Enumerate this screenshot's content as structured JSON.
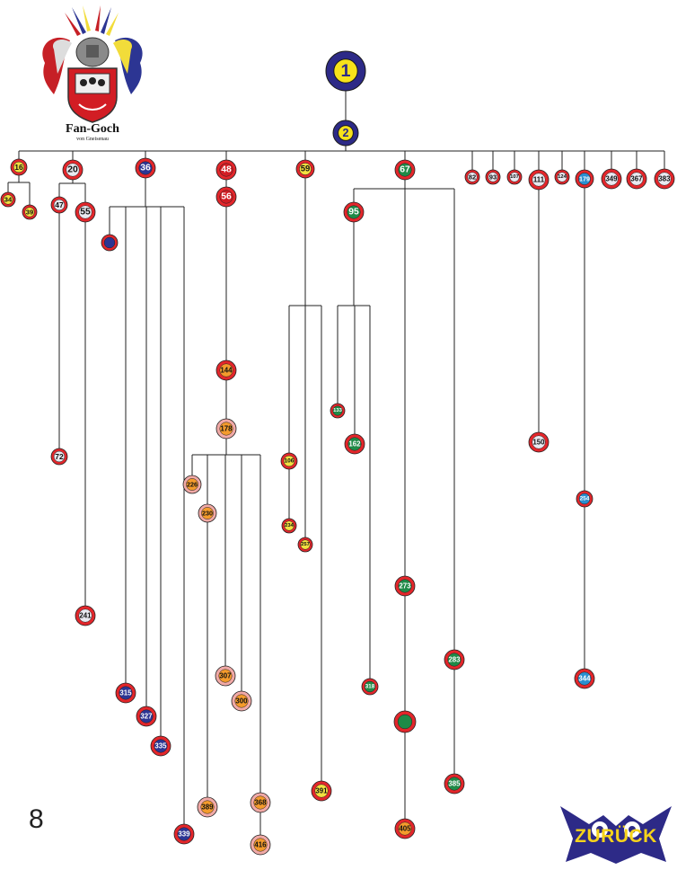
{
  "crest": {
    "name": "Fan-Goch",
    "subtitle": "von Gneisenau"
  },
  "page_number": "8",
  "back_button": {
    "label": "ZURÜCK",
    "icon": "owl-icon"
  },
  "colors": {
    "line": "#222222",
    "root_fill": "#2d2a87",
    "root_inner": "#f7e21a",
    "red_ring": "#e3262b",
    "pink_ring": "#f1a9a6"
  },
  "nodes": [
    {
      "id": "n1",
      "label": "1",
      "type": "root"
    },
    {
      "id": "n2",
      "label": "2",
      "type": "root"
    },
    {
      "id": "n16",
      "label": "16",
      "type": "red",
      "fill": "#f3e040"
    },
    {
      "id": "n20",
      "label": "20",
      "type": "red",
      "fill": "#e9e9f0"
    },
    {
      "id": "n36",
      "label": "36",
      "type": "red",
      "fill": "#2c3593"
    },
    {
      "id": "n48",
      "label": "48",
      "type": "red",
      "fill": "#d21d24"
    },
    {
      "id": "n56",
      "label": "56",
      "type": "red",
      "fill": "#d21d24"
    },
    {
      "id": "n59",
      "label": "59",
      "type": "red",
      "fill": "#f3e040"
    },
    {
      "id": "n67",
      "label": "67",
      "type": "red",
      "fill": "#1f8a47"
    },
    {
      "id": "n82",
      "label": "82",
      "type": "red",
      "fill": "#e9e9f0"
    },
    {
      "id": "n93",
      "label": "93",
      "type": "red",
      "fill": "#e9e9f0"
    },
    {
      "id": "n107",
      "label": "107",
      "type": "red",
      "fill": "#e9e9f0"
    },
    {
      "id": "n111",
      "label": "111",
      "type": "red",
      "fill": "#e9e9f0"
    },
    {
      "id": "n124",
      "label": "124",
      "type": "red",
      "fill": "#e9e9f0"
    },
    {
      "id": "n179",
      "label": "179",
      "type": "red",
      "fill": "#2a8fd0"
    },
    {
      "id": "n349",
      "label": "349",
      "type": "red",
      "fill": "#e9e9f0"
    },
    {
      "id": "n367",
      "label": "367",
      "type": "red",
      "fill": "#e9e9f0"
    },
    {
      "id": "n383",
      "label": "383",
      "type": "red",
      "fill": "#e9e9f0"
    },
    {
      "id": "n34",
      "label": "34",
      "type": "red",
      "fill": "#f3e040"
    },
    {
      "id": "n39",
      "label": "39",
      "type": "red",
      "fill": "#f3e040"
    },
    {
      "id": "n47",
      "label": "47",
      "type": "red",
      "fill": "#e9e9f0"
    },
    {
      "id": "n55",
      "label": "55",
      "type": "red",
      "fill": "#e9e9f0"
    },
    {
      "id": "n36a",
      "label": "",
      "type": "red",
      "fill": "#2c3593"
    },
    {
      "id": "n95",
      "label": "95",
      "type": "red",
      "fill": "#1f8a47"
    },
    {
      "id": "n144",
      "label": "144",
      "type": "red",
      "fill": "#f49b2c"
    },
    {
      "id": "n178",
      "label": "178",
      "type": "pink",
      "fill": "#f49b2c"
    },
    {
      "id": "n226",
      "label": "226",
      "type": "pink",
      "fill": "#f49b2c"
    },
    {
      "id": "n230",
      "label": "230",
      "type": "pink",
      "fill": "#f49b2c"
    },
    {
      "id": "n307",
      "label": "307",
      "type": "pink",
      "fill": "#f49b2c"
    },
    {
      "id": "n300",
      "label": "300",
      "type": "pink",
      "fill": "#f49b2c"
    },
    {
      "id": "n389",
      "label": "389",
      "type": "pink",
      "fill": "#f49b2c"
    },
    {
      "id": "n368",
      "label": "368",
      "type": "pink",
      "fill": "#f49b2c"
    },
    {
      "id": "n416",
      "label": "416",
      "type": "pink",
      "fill": "#f49b2c"
    },
    {
      "id": "n72",
      "label": "72",
      "type": "red",
      "fill": "#e9e9f0"
    },
    {
      "id": "n241",
      "label": "241",
      "type": "red",
      "fill": "#e9e9f0"
    },
    {
      "id": "n150",
      "label": "150",
      "type": "red",
      "fill": "#e9e9f0"
    },
    {
      "id": "n106",
      "label": "106",
      "type": "red",
      "fill": "#f3e040"
    },
    {
      "id": "n234",
      "label": "234",
      "type": "red",
      "fill": "#f3e040"
    },
    {
      "id": "n257",
      "label": "257",
      "type": "red",
      "fill": "#f3e040"
    },
    {
      "id": "n391",
      "label": "391",
      "type": "red",
      "fill": "#f3e040"
    },
    {
      "id": "n133",
      "label": "133",
      "type": "red",
      "fill": "#1f8a47"
    },
    {
      "id": "n162",
      "label": "162",
      "type": "red",
      "fill": "#1f8a47"
    },
    {
      "id": "n273",
      "label": "273",
      "type": "red",
      "fill": "#1f8a47"
    },
    {
      "id": "n283",
      "label": "283",
      "type": "red",
      "fill": "#1f8a47"
    },
    {
      "id": "n318",
      "label": "318",
      "type": "red",
      "fill": "#1f8a47"
    },
    {
      "id": "n365",
      "label": "",
      "type": "red",
      "fill": "#1f8a47"
    },
    {
      "id": "n385",
      "label": "385",
      "type": "red",
      "fill": "#1f8a47"
    },
    {
      "id": "n405",
      "label": "405",
      "type": "red",
      "fill": "#f49b2c"
    },
    {
      "id": "n254",
      "label": "254",
      "type": "red",
      "fill": "#2a8fd0"
    },
    {
      "id": "n344",
      "label": "344",
      "type": "red",
      "fill": "#2a8fd0"
    },
    {
      "id": "n315",
      "label": "315",
      "type": "red",
      "fill": "#2c3593"
    },
    {
      "id": "n327",
      "label": "327",
      "type": "red",
      "fill": "#2c3593"
    },
    {
      "id": "n335",
      "label": "335",
      "type": "red",
      "fill": "#2c3593"
    },
    {
      "id": "n339",
      "label": "339",
      "type": "red",
      "fill": "#2c3593"
    }
  ]
}
